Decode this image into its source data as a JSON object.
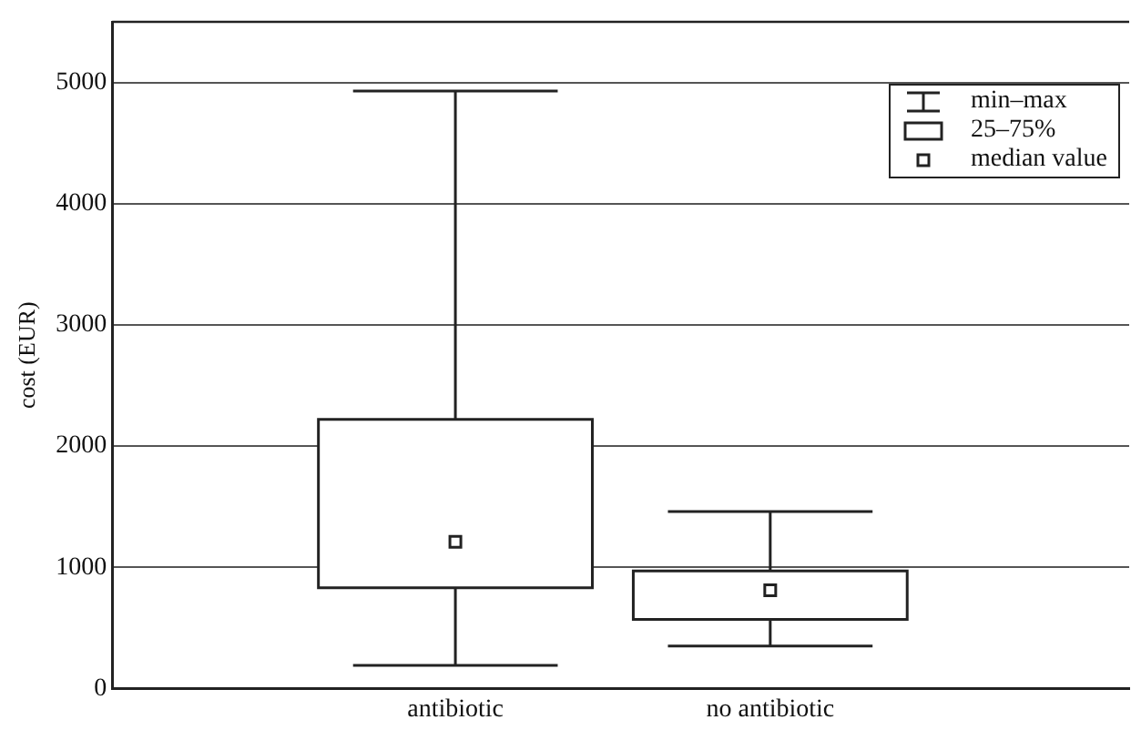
{
  "chart_data": {
    "type": "box",
    "ylabel": "cost (EUR)",
    "categories": [
      "antibiotic",
      "no antibiotic"
    ],
    "boxes": [
      {
        "low": 190,
        "q1": 830,
        "median": 1210,
        "q3": 2220,
        "high": 4930
      },
      {
        "low": 350,
        "q1": 570,
        "median": 810,
        "q3": 970,
        "high": 1460
      }
    ],
    "ylim": [
      0,
      5500
    ],
    "yticks": [
      0,
      1000,
      2000,
      3000,
      4000,
      5000
    ],
    "grid": "y",
    "annotations": [
      "min–max",
      "25–75%",
      "median value"
    ]
  }
}
